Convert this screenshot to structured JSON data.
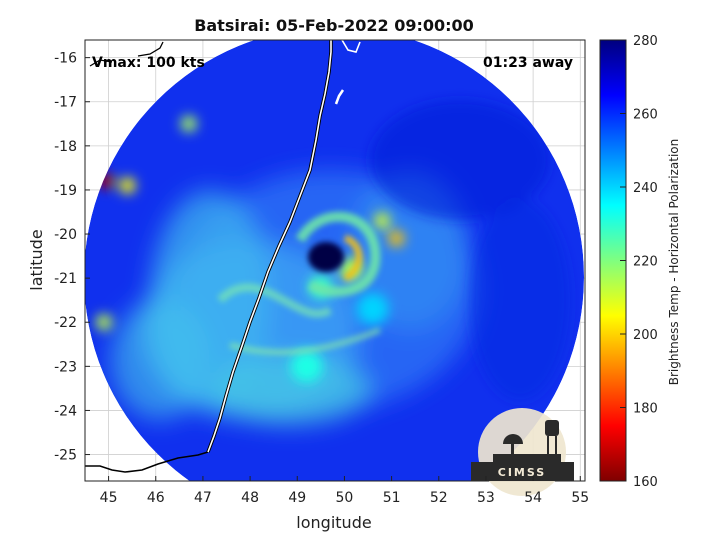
{
  "chart_data": {
    "type": "heatmap",
    "title": "Batsirai: 05-Feb-2022 09:00:00",
    "xlabel": "longitude",
    "ylabel": "latitude",
    "xlim": [
      44.5,
      55.1
    ],
    "ylim": [
      -25.6,
      -15.6
    ],
    "xticks": [
      45,
      46,
      47,
      48,
      49,
      50,
      51,
      52,
      53,
      54,
      55
    ],
    "yticks": [
      -16,
      -17,
      -18,
      -19,
      -20,
      -21,
      -22,
      -23,
      -24,
      -25
    ],
    "grid": true,
    "annotations": {
      "vmax": "Vmax: 100 kts",
      "away": "01:23 away"
    },
    "colorbar": {
      "label": "Brightness Temp - Horizontal Polarization",
      "range": [
        160,
        280
      ],
      "ticks": [
        280,
        260,
        240,
        220,
        200,
        180,
        160
      ]
    },
    "storm_center": {
      "lon": 49.8,
      "lat": -20.6
    },
    "swath_center": {
      "lon": 49.8,
      "lat": -21.4
    },
    "features": [
      {
        "type": "eye",
        "lon": 49.8,
        "lat": -20.6,
        "value": 270
      },
      {
        "type": "eyewall",
        "lon": 50.15,
        "lat": -20.8,
        "value": 215
      },
      {
        "type": "eyewall",
        "lon": 49.5,
        "lat": -21.2,
        "value": 228
      },
      {
        "type": "convective_cell",
        "lon": 51.1,
        "lat": -20.1,
        "value": 198
      },
      {
        "type": "convective_cell",
        "lon": 50.8,
        "lat": -19.7,
        "value": 210
      },
      {
        "type": "convective_cell",
        "lon": 44.95,
        "lat": -18.8,
        "value": 165
      },
      {
        "type": "convective_cell",
        "lon": 45.4,
        "lat": -18.9,
        "value": 205
      },
      {
        "type": "convective_cell",
        "lon": 46.7,
        "lat": -17.5,
        "value": 215
      },
      {
        "type": "convective_cell",
        "lon": 44.9,
        "lat": -22.0,
        "value": 212
      },
      {
        "type": "rainband",
        "lon": 49.2,
        "lat": -23.0,
        "value": 232
      },
      {
        "type": "rainband",
        "lon": 50.6,
        "lat": -21.7,
        "value": 240
      }
    ]
  },
  "logo": {
    "text": "CIMSS"
  }
}
